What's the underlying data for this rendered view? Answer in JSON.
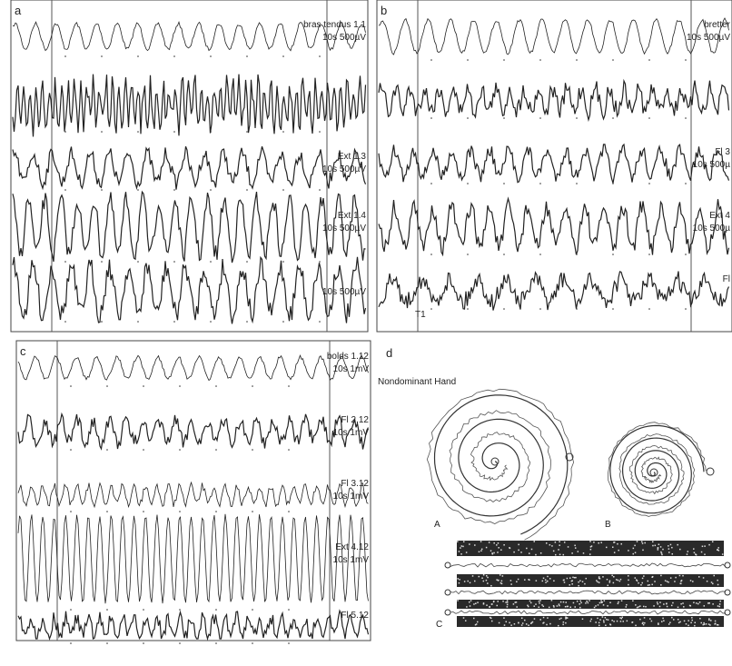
{
  "panels": [
    {
      "label": "a",
      "traces": [
        {
          "name": "bras tendus 1.1",
          "scale": "10s 500µV"
        },
        {},
        {
          "name": "Ext 1.3",
          "scale": "10s 500µV"
        },
        {
          "name": "Ext 1.4",
          "scale": "10s 500µV"
        },
        {
          "scale": "10s 500µV"
        }
      ]
    },
    {
      "label": "b",
      "marker": "T1",
      "traces": [
        {
          "name": "bretter",
          "scale": "10s 500µV"
        },
        {},
        {
          "name": "Fl 3",
          "scale": "10s 500µ"
        },
        {
          "name": "Ext 4",
          "scale": "10s 500µ"
        },
        {
          "name": "Fl"
        }
      ]
    },
    {
      "label": "c",
      "traces": [
        {
          "name": "bolds 1.12",
          "scale": "10s 1mV"
        },
        {
          "name": "Fl 2.12",
          "scale": "10s 1mV"
        },
        {
          "name": "Fl 3.12",
          "scale": "10s 1mV"
        },
        {
          "name": "Ext 4.12",
          "scale": "10s 1mV"
        },
        {
          "name": "Fl 5.12"
        }
      ]
    }
  ],
  "drawing": {
    "label": "d",
    "title": "Nondominant Hand",
    "spiral_labels": [
      "A",
      "B"
    ],
    "lines_label": "C"
  }
}
